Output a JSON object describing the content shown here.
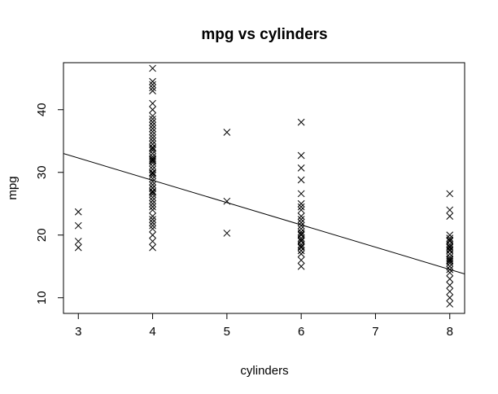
{
  "chart_data": {
    "type": "scatter",
    "title": "mpg vs cylinders",
    "xlabel": "cylinders",
    "ylabel": "mpg",
    "xlim": [
      2.8,
      8.2
    ],
    "ylim": [
      7.5,
      47.5
    ],
    "xticks": [
      3,
      4,
      5,
      6,
      7,
      8
    ],
    "yticks": [
      10,
      20,
      30,
      40
    ],
    "grid": false,
    "marker": "x",
    "points": {
      "x": [
        3,
        3,
        3,
        3,
        4,
        4,
        4,
        4,
        4,
        4,
        4,
        4,
        4,
        4,
        4,
        4,
        4,
        4,
        4,
        4,
        4,
        4,
        4,
        4,
        4,
        4,
        4,
        4,
        4,
        4,
        4,
        4,
        4,
        4,
        4,
        4,
        4,
        4,
        4,
        4,
        4,
        4,
        4,
        4,
        4,
        4,
        4,
        4,
        4,
        4,
        4,
        4,
        4,
        4,
        4,
        4,
        5,
        5,
        5,
        6,
        6,
        6,
        6,
        6,
        6,
        6,
        6,
        6,
        6,
        6,
        6,
        6,
        6,
        6,
        6,
        6,
        6,
        6,
        6,
        6,
        6,
        6,
        6,
        6,
        6,
        8,
        8,
        8,
        8,
        8,
        8,
        8,
        8,
        8,
        8,
        8,
        8,
        8,
        8,
        8,
        8,
        8,
        8,
        8,
        8,
        8,
        8,
        8,
        8,
        8,
        8
      ],
      "y": [
        18,
        19,
        21.5,
        23.7,
        18,
        19,
        20,
        21,
        21.5,
        22,
        23,
        24,
        24.5,
        25,
        26,
        26.5,
        27,
        27.5,
        28,
        28.5,
        29,
        29.5,
        30,
        30.5,
        31,
        31.5,
        32,
        32.5,
        33,
        33.5,
        34,
        34.5,
        35,
        36,
        37,
        37.5,
        38,
        38.5,
        39,
        40,
        41,
        43,
        43.5,
        44,
        44.5,
        46.6,
        22.5,
        25.5,
        27.5,
        29.8,
        31.8,
        33.8,
        35.5,
        36.5,
        32.2,
        26.8,
        20.3,
        25.4,
        36.4,
        15,
        16,
        17,
        17.5,
        18,
        18.5,
        19,
        19.5,
        20,
        20.5,
        21,
        21.5,
        22,
        22.5,
        23,
        24,
        24.5,
        25,
        26.6,
        28.8,
        30.7,
        32.7,
        38,
        19.2,
        20.2,
        18.2,
        9,
        10,
        11,
        12,
        13,
        14,
        14.5,
        15,
        15.5,
        16,
        16.5,
        17,
        17.5,
        18,
        18.5,
        19,
        19.5,
        20,
        23,
        24,
        26.6,
        16.2,
        15.8,
        17.7,
        18.2,
        19.2
      ]
    },
    "regression_line": {
      "x": [
        2.8,
        8.2
      ],
      "y": [
        33,
        13.8
      ]
    }
  }
}
